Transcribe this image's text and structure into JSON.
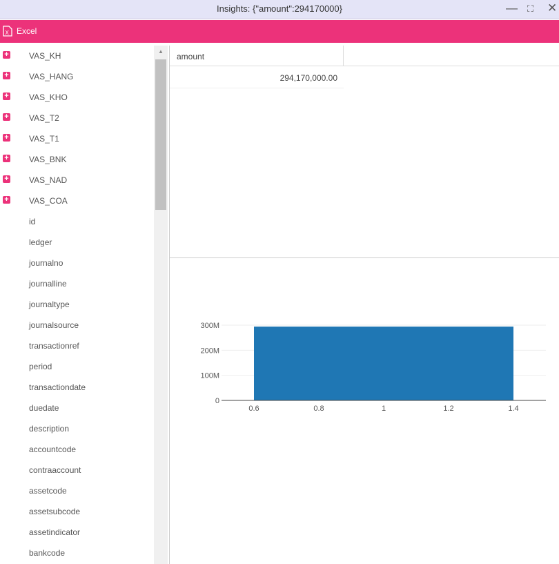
{
  "window": {
    "title": "Insights: {\"amount\":294170000}",
    "minimize": "—",
    "maximize": "⛶",
    "close": "✕"
  },
  "toolbar": {
    "excel_label": "Excel"
  },
  "sidebar": {
    "items": [
      {
        "label": "VAS_KH",
        "expandable": true
      },
      {
        "label": "VAS_HANG",
        "expandable": true
      },
      {
        "label": "VAS_KHO",
        "expandable": true
      },
      {
        "label": "VAS_T2",
        "expandable": true
      },
      {
        "label": "VAS_T1",
        "expandable": true
      },
      {
        "label": "VAS_BNK",
        "expandable": true
      },
      {
        "label": "VAS_NAD",
        "expandable": true
      },
      {
        "label": "VAS_COA",
        "expandable": true
      },
      {
        "label": "id"
      },
      {
        "label": "ledger"
      },
      {
        "label": "journalno"
      },
      {
        "label": "journalline"
      },
      {
        "label": "journaltype"
      },
      {
        "label": "journalsource"
      },
      {
        "label": "transactionref"
      },
      {
        "label": "period"
      },
      {
        "label": "transactiondate"
      },
      {
        "label": "duedate"
      },
      {
        "label": "description"
      },
      {
        "label": "accountcode"
      },
      {
        "label": "contraaccount"
      },
      {
        "label": "assetcode"
      },
      {
        "label": "assetsubcode"
      },
      {
        "label": "assetindicator"
      },
      {
        "label": "bankcode"
      }
    ]
  },
  "table": {
    "header": "amount",
    "rows": [
      [
        "294,170,000.00"
      ]
    ]
  },
  "chart_data": {
    "type": "bar",
    "x": [
      1
    ],
    "values": [
      294170000
    ],
    "bar_range": [
      0.6,
      1.4
    ],
    "xlim": [
      0.5,
      1.5
    ],
    "ylim": [
      0,
      300000000
    ],
    "xticks": [
      "0.6",
      "0.8",
      "1",
      "1.2",
      "1.4"
    ],
    "xtick_values": [
      0.6,
      0.8,
      1,
      1.2,
      1.4
    ],
    "yticks": [
      "0",
      "100M",
      "200M",
      "300M"
    ],
    "ytick_values": [
      0,
      100000000,
      200000000,
      300000000
    ],
    "color": "#1f77b4",
    "grid": true,
    "title": "",
    "xlabel": "",
    "ylabel": ""
  },
  "colors": {
    "accent": "#ec327a",
    "titlebar": "#e4e4f7"
  }
}
